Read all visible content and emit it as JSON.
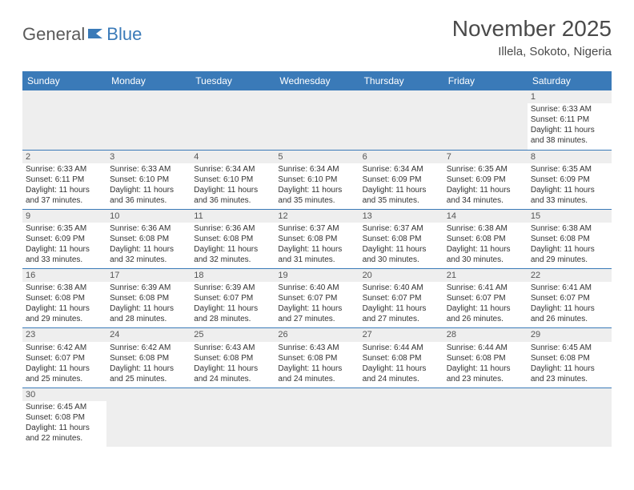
{
  "logo": {
    "general": "General",
    "blue": "Blue"
  },
  "title": "November 2025",
  "location": "Illela, Sokoto, Nigeria",
  "colors": {
    "header_bg": "#3a7ab8",
    "daynum_bg": "#eeeeee",
    "text": "#333333",
    "title_text": "#4a4a4a"
  },
  "weekdays": [
    "Sunday",
    "Monday",
    "Tuesday",
    "Wednesday",
    "Thursday",
    "Friday",
    "Saturday"
  ],
  "weeks": [
    [
      null,
      null,
      null,
      null,
      null,
      null,
      {
        "n": "1",
        "sr": "Sunrise: 6:33 AM",
        "ss": "Sunset: 6:11 PM",
        "d1": "Daylight: 11 hours",
        "d2": "and 38 minutes."
      }
    ],
    [
      {
        "n": "2",
        "sr": "Sunrise: 6:33 AM",
        "ss": "Sunset: 6:11 PM",
        "d1": "Daylight: 11 hours",
        "d2": "and 37 minutes."
      },
      {
        "n": "3",
        "sr": "Sunrise: 6:33 AM",
        "ss": "Sunset: 6:10 PM",
        "d1": "Daylight: 11 hours",
        "d2": "and 36 minutes."
      },
      {
        "n": "4",
        "sr": "Sunrise: 6:34 AM",
        "ss": "Sunset: 6:10 PM",
        "d1": "Daylight: 11 hours",
        "d2": "and 36 minutes."
      },
      {
        "n": "5",
        "sr": "Sunrise: 6:34 AM",
        "ss": "Sunset: 6:10 PM",
        "d1": "Daylight: 11 hours",
        "d2": "and 35 minutes."
      },
      {
        "n": "6",
        "sr": "Sunrise: 6:34 AM",
        "ss": "Sunset: 6:09 PM",
        "d1": "Daylight: 11 hours",
        "d2": "and 35 minutes."
      },
      {
        "n": "7",
        "sr": "Sunrise: 6:35 AM",
        "ss": "Sunset: 6:09 PM",
        "d1": "Daylight: 11 hours",
        "d2": "and 34 minutes."
      },
      {
        "n": "8",
        "sr": "Sunrise: 6:35 AM",
        "ss": "Sunset: 6:09 PM",
        "d1": "Daylight: 11 hours",
        "d2": "and 33 minutes."
      }
    ],
    [
      {
        "n": "9",
        "sr": "Sunrise: 6:35 AM",
        "ss": "Sunset: 6:09 PM",
        "d1": "Daylight: 11 hours",
        "d2": "and 33 minutes."
      },
      {
        "n": "10",
        "sr": "Sunrise: 6:36 AM",
        "ss": "Sunset: 6:08 PM",
        "d1": "Daylight: 11 hours",
        "d2": "and 32 minutes."
      },
      {
        "n": "11",
        "sr": "Sunrise: 6:36 AM",
        "ss": "Sunset: 6:08 PM",
        "d1": "Daylight: 11 hours",
        "d2": "and 32 minutes."
      },
      {
        "n": "12",
        "sr": "Sunrise: 6:37 AM",
        "ss": "Sunset: 6:08 PM",
        "d1": "Daylight: 11 hours",
        "d2": "and 31 minutes."
      },
      {
        "n": "13",
        "sr": "Sunrise: 6:37 AM",
        "ss": "Sunset: 6:08 PM",
        "d1": "Daylight: 11 hours",
        "d2": "and 30 minutes."
      },
      {
        "n": "14",
        "sr": "Sunrise: 6:38 AM",
        "ss": "Sunset: 6:08 PM",
        "d1": "Daylight: 11 hours",
        "d2": "and 30 minutes."
      },
      {
        "n": "15",
        "sr": "Sunrise: 6:38 AM",
        "ss": "Sunset: 6:08 PM",
        "d1": "Daylight: 11 hours",
        "d2": "and 29 minutes."
      }
    ],
    [
      {
        "n": "16",
        "sr": "Sunrise: 6:38 AM",
        "ss": "Sunset: 6:08 PM",
        "d1": "Daylight: 11 hours",
        "d2": "and 29 minutes."
      },
      {
        "n": "17",
        "sr": "Sunrise: 6:39 AM",
        "ss": "Sunset: 6:08 PM",
        "d1": "Daylight: 11 hours",
        "d2": "and 28 minutes."
      },
      {
        "n": "18",
        "sr": "Sunrise: 6:39 AM",
        "ss": "Sunset: 6:07 PM",
        "d1": "Daylight: 11 hours",
        "d2": "and 28 minutes."
      },
      {
        "n": "19",
        "sr": "Sunrise: 6:40 AM",
        "ss": "Sunset: 6:07 PM",
        "d1": "Daylight: 11 hours",
        "d2": "and 27 minutes."
      },
      {
        "n": "20",
        "sr": "Sunrise: 6:40 AM",
        "ss": "Sunset: 6:07 PM",
        "d1": "Daylight: 11 hours",
        "d2": "and 27 minutes."
      },
      {
        "n": "21",
        "sr": "Sunrise: 6:41 AM",
        "ss": "Sunset: 6:07 PM",
        "d1": "Daylight: 11 hours",
        "d2": "and 26 minutes."
      },
      {
        "n": "22",
        "sr": "Sunrise: 6:41 AM",
        "ss": "Sunset: 6:07 PM",
        "d1": "Daylight: 11 hours",
        "d2": "and 26 minutes."
      }
    ],
    [
      {
        "n": "23",
        "sr": "Sunrise: 6:42 AM",
        "ss": "Sunset: 6:07 PM",
        "d1": "Daylight: 11 hours",
        "d2": "and 25 minutes."
      },
      {
        "n": "24",
        "sr": "Sunrise: 6:42 AM",
        "ss": "Sunset: 6:08 PM",
        "d1": "Daylight: 11 hours",
        "d2": "and 25 minutes."
      },
      {
        "n": "25",
        "sr": "Sunrise: 6:43 AM",
        "ss": "Sunset: 6:08 PM",
        "d1": "Daylight: 11 hours",
        "d2": "and 24 minutes."
      },
      {
        "n": "26",
        "sr": "Sunrise: 6:43 AM",
        "ss": "Sunset: 6:08 PM",
        "d1": "Daylight: 11 hours",
        "d2": "and 24 minutes."
      },
      {
        "n": "27",
        "sr": "Sunrise: 6:44 AM",
        "ss": "Sunset: 6:08 PM",
        "d1": "Daylight: 11 hours",
        "d2": "and 24 minutes."
      },
      {
        "n": "28",
        "sr": "Sunrise: 6:44 AM",
        "ss": "Sunset: 6:08 PM",
        "d1": "Daylight: 11 hours",
        "d2": "and 23 minutes."
      },
      {
        "n": "29",
        "sr": "Sunrise: 6:45 AM",
        "ss": "Sunset: 6:08 PM",
        "d1": "Daylight: 11 hours",
        "d2": "and 23 minutes."
      }
    ],
    [
      {
        "n": "30",
        "sr": "Sunrise: 6:45 AM",
        "ss": "Sunset: 6:08 PM",
        "d1": "Daylight: 11 hours",
        "d2": "and 22 minutes."
      },
      null,
      null,
      null,
      null,
      null,
      null
    ]
  ]
}
